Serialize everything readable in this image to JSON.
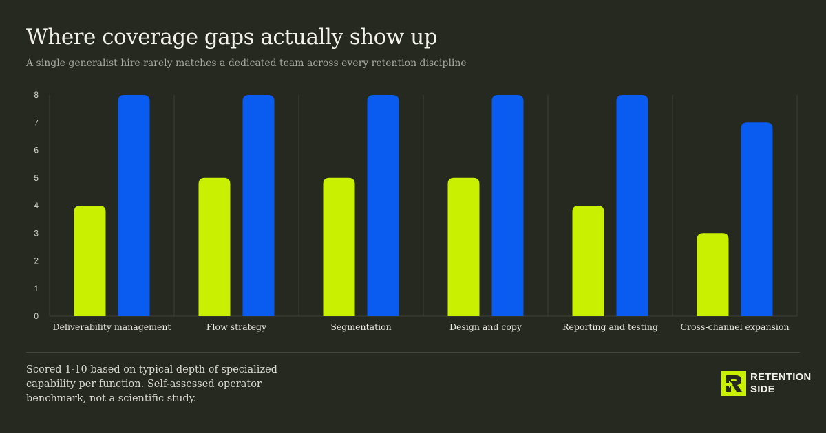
{
  "header": {
    "title": "Where coverage gaps actually show up",
    "subtitle": "A single generalist hire rarely matches a dedicated team across every retention discipline"
  },
  "footnote": "Scored 1-10 based on typical depth of specialized capability per function. Self-assessed operator benchmark, not a scientific study.",
  "brand": {
    "line1": "RETENTION",
    "line2": "SIDE",
    "icon": "retention-side-logo-icon"
  },
  "colors": {
    "background": "#262920",
    "generalist": "#c9f000",
    "team": "#0a5bf0",
    "grid": "#3d4035"
  },
  "chart_data": {
    "type": "bar",
    "categories": [
      "Deliverability management",
      "Flow strategy",
      "Segmentation",
      "Design and copy",
      "Reporting and testing",
      "Cross-channel expansion"
    ],
    "series": [
      {
        "values": [
          4,
          5,
          5,
          5,
          4,
          3
        ],
        "color": "#c9f000"
      },
      {
        "values": [
          8,
          8,
          8,
          8,
          8,
          7
        ],
        "color": "#0a5bf0"
      }
    ],
    "ylim": [
      0,
      8
    ],
    "yticks": [
      "0",
      "1",
      "2",
      "3",
      "4",
      "5",
      "6",
      "7",
      "8"
    ],
    "grid": "vertical separators between categories",
    "legend": "none"
  }
}
